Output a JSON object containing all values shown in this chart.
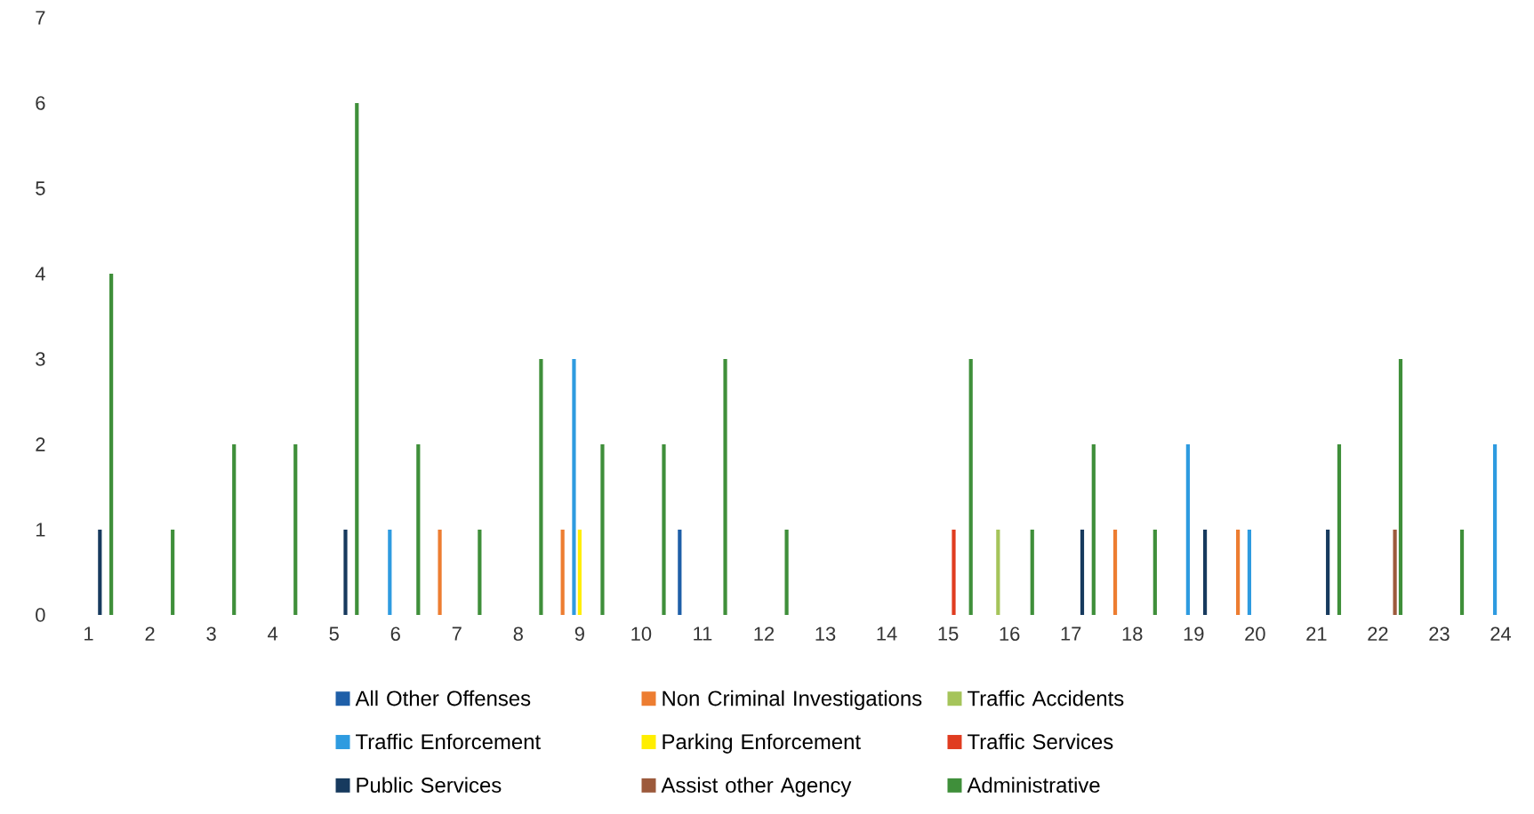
{
  "chart_data": {
    "type": "bar",
    "categories": [
      "1",
      "2",
      "3",
      "4",
      "5",
      "6",
      "7",
      "8",
      "9",
      "10",
      "11",
      "12",
      "13",
      "14",
      "15",
      "16",
      "17",
      "18",
      "19",
      "20",
      "21",
      "22",
      "23",
      "24"
    ],
    "series": [
      {
        "name": "All Other Offenses",
        "color": "#1f5fa8",
        "values": [
          null,
          null,
          null,
          null,
          null,
          null,
          null,
          null,
          null,
          null,
          1,
          null,
          null,
          null,
          null,
          null,
          null,
          null,
          null,
          null,
          null,
          null,
          null,
          null
        ]
      },
      {
        "name": "Non Criminal Investigations",
        "color": "#ed7d31",
        "values": [
          null,
          null,
          null,
          null,
          null,
          null,
          1,
          null,
          1,
          null,
          null,
          null,
          null,
          null,
          null,
          null,
          null,
          1,
          null,
          1,
          null,
          null,
          null,
          null
        ]
      },
      {
        "name": "Traffic Accidents",
        "color": "#a5c45a",
        "values": [
          null,
          null,
          null,
          null,
          null,
          null,
          null,
          null,
          null,
          null,
          null,
          null,
          null,
          null,
          null,
          1,
          null,
          null,
          null,
          null,
          null,
          null,
          null,
          null
        ]
      },
      {
        "name": "Traffic Enforcement",
        "color": "#2e9be0",
        "values": [
          null,
          null,
          null,
          null,
          null,
          1,
          null,
          null,
          3,
          null,
          null,
          null,
          null,
          null,
          null,
          null,
          null,
          null,
          2,
          1,
          null,
          null,
          null,
          2
        ]
      },
      {
        "name": "Parking Enforcement",
        "color": "#ffee00",
        "values": [
          null,
          null,
          null,
          null,
          null,
          null,
          null,
          null,
          1,
          null,
          null,
          null,
          null,
          null,
          null,
          null,
          null,
          null,
          null,
          null,
          null,
          null,
          null,
          null
        ]
      },
      {
        "name": "Traffic Services",
        "color": "#e03c20",
        "values": [
          null,
          null,
          null,
          null,
          null,
          null,
          null,
          null,
          null,
          null,
          null,
          null,
          null,
          null,
          1,
          null,
          null,
          null,
          null,
          null,
          null,
          null,
          null,
          null
        ]
      },
      {
        "name": "Public Services",
        "color": "#173a5e",
        "values": [
          1,
          null,
          null,
          null,
          1,
          null,
          null,
          null,
          null,
          null,
          null,
          null,
          null,
          null,
          null,
          null,
          1,
          null,
          1,
          null,
          1,
          null,
          null,
          null
        ]
      },
      {
        "name": "Assist other Agency",
        "color": "#9c5a3c",
        "values": [
          null,
          null,
          null,
          null,
          null,
          null,
          null,
          null,
          null,
          null,
          null,
          null,
          null,
          null,
          null,
          null,
          null,
          null,
          null,
          null,
          null,
          1,
          null,
          null
        ]
      },
      {
        "name": "Administrative",
        "color": "#3f8f3a",
        "values": [
          4,
          1,
          2,
          2,
          6,
          2,
          1,
          3,
          2,
          2,
          3,
          1,
          null,
          null,
          3,
          1,
          2,
          1,
          null,
          null,
          2,
          3,
          1,
          null
        ]
      }
    ],
    "ylim": [
      0,
      7
    ],
    "yticks": [
      0,
      1,
      2,
      3,
      4,
      5,
      6,
      7
    ],
    "grid": false,
    "legend": "bottom"
  }
}
